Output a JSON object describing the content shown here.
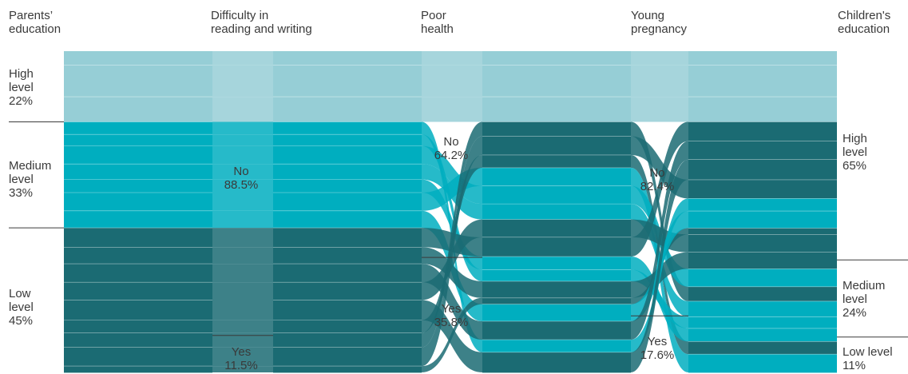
{
  "colors": {
    "light": "#96ced6",
    "medium": "#00aebf",
    "dark": "#1b6b73",
    "rule": "#3a3a3a"
  },
  "headers": [
    "Parents’\neducation",
    "Difficulty in\nreading and writing",
    "Poor\nhealth",
    "Young\npregnancy",
    "Children's\neducation"
  ],
  "parents": {
    "high": {
      "label": "High\nlevel\n22%",
      "value": 22
    },
    "medium": {
      "label": "Medium\nlevel\n33%",
      "value": 33
    },
    "low": {
      "label": "Low\nlevel\n45%",
      "value": 45
    }
  },
  "reading": {
    "no": {
      "label": "No\n88.5%",
      "value": 88.5
    },
    "yes": {
      "label": "Yes\n11.5%",
      "value": 11.5
    }
  },
  "health": {
    "no": {
      "label": "No\n64.2%",
      "value": 64.2
    },
    "yes": {
      "label": "Yes\n35.8%",
      "value": 35.8
    }
  },
  "pregnancy": {
    "no": {
      "label": "No\n82.4%",
      "value": 82.4
    },
    "yes": {
      "label": "Yes\n17.6%",
      "value": 17.6
    }
  },
  "children": {
    "high": {
      "label": "High\nlevel\n65%",
      "value": 65
    },
    "medium": {
      "label": "Medium\nlevel\n24%",
      "value": 24
    },
    "low": {
      "label": "Low level\n11%",
      "value": 11
    }
  }
}
